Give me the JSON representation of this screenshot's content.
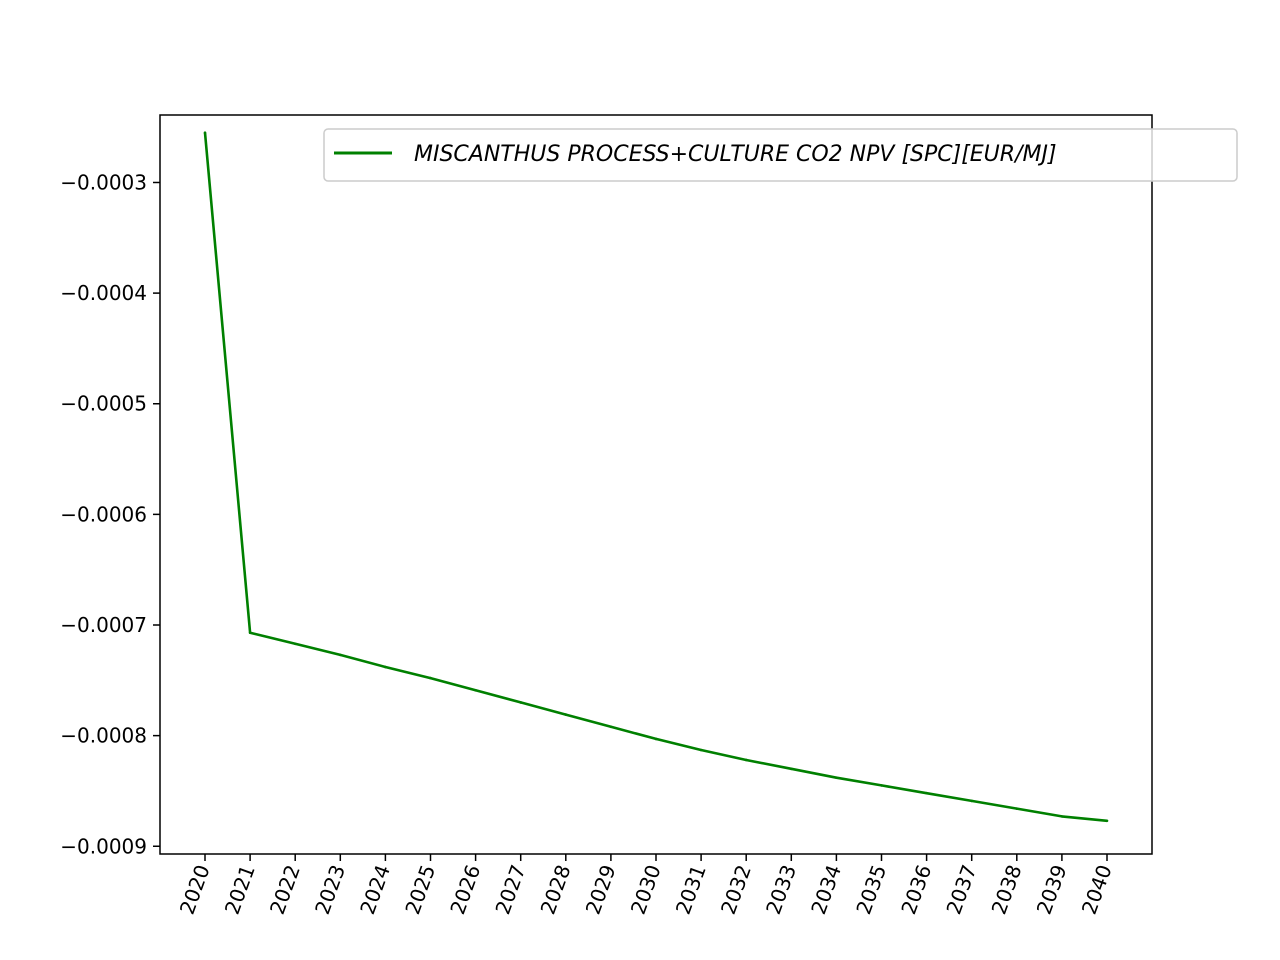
{
  "chart_data": {
    "type": "line",
    "title": "",
    "xlabel": "",
    "ylabel": "",
    "x": [
      "2020",
      "2021",
      "2022",
      "2023",
      "2024",
      "2025",
      "2026",
      "2027",
      "2028",
      "2029",
      "2030",
      "2031",
      "2032",
      "2033",
      "2034",
      "2035",
      "2036",
      "2037",
      "2038",
      "2039",
      "2040"
    ],
    "series": [
      {
        "name": "MISCANTHUS PROCESS+CULTURE CO2 NPV [SPC][EUR/MJ]",
        "color": "#008000",
        "values": [
          -0.000255,
          -0.000707,
          -0.000717,
          -0.000727,
          -0.000738,
          -0.000748,
          -0.000759,
          -0.00077,
          -0.000781,
          -0.000792,
          -0.000803,
          -0.000813,
          -0.000822,
          -0.00083,
          -0.000838,
          -0.000845,
          -0.000852,
          -0.000859,
          -0.000866,
          -0.000873,
          -0.000877
        ]
      }
    ],
    "ylim": [
      -0.000907,
      -0.000239
    ],
    "yticks": [
      -0.0003,
      -0.0004,
      -0.0005,
      -0.0006,
      -0.0007,
      -0.0008,
      -0.0009
    ],
    "ytick_labels": [
      "−0.0003",
      "−0.0004",
      "−0.0005",
      "−0.0006",
      "−0.0007",
      "−0.0008",
      "−0.0009"
    ],
    "grid": false,
    "legend_position": "top-right"
  }
}
